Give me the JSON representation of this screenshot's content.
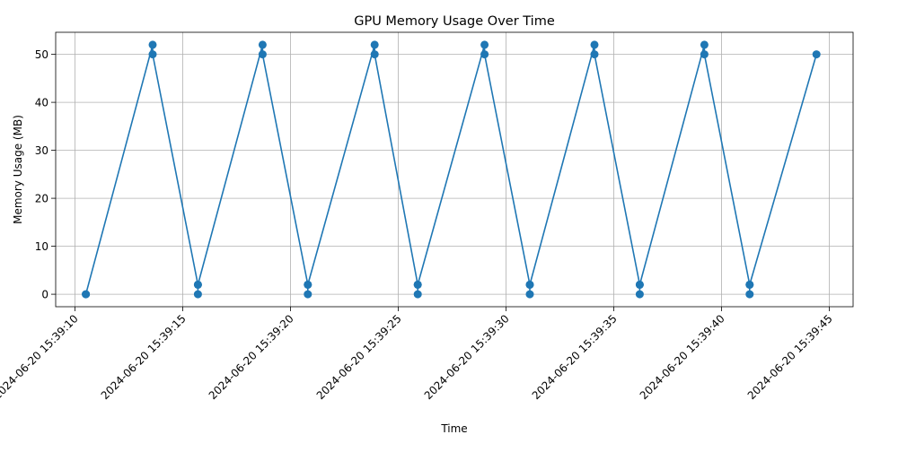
{
  "chart_data": {
    "type": "line",
    "title": "GPU Memory Usage Over Time",
    "xlabel": "Time",
    "ylabel": "Memory Usage (MB)",
    "x_ticks": [
      "2024-06-20 15:39:10",
      "2024-06-20 15:39:15",
      "2024-06-20 15:39:20",
      "2024-06-20 15:39:25",
      "2024-06-20 15:39:30",
      "2024-06-20 15:39:35",
      "2024-06-20 15:39:40",
      "2024-06-20 15:39:45"
    ],
    "y_ticks": [
      0,
      10,
      20,
      30,
      40,
      50
    ],
    "xlim": [
      "2024-06-20 15:39:09.1",
      "2024-06-20 15:39:46.1"
    ],
    "ylim": [
      -2.6,
      54.6
    ],
    "grid": true,
    "series": [
      {
        "color": "#1f77b4",
        "marker": "circle",
        "points": [
          {
            "x": "2024-06-20 15:39:10.5",
            "y": 0
          },
          {
            "x": "2024-06-20 15:39:10.5",
            "y": 0
          },
          {
            "x": "2024-06-20 15:39:13.6",
            "y": 52
          },
          {
            "x": "2024-06-20 15:39:13.6",
            "y": 50
          },
          {
            "x": "2024-06-20 15:39:15.7",
            "y": 2
          },
          {
            "x": "2024-06-20 15:39:15.7",
            "y": 0
          },
          {
            "x": "2024-06-20 15:39:15.7",
            "y": 2
          },
          {
            "x": "2024-06-20 15:39:18.7",
            "y": 52
          },
          {
            "x": "2024-06-20 15:39:18.7",
            "y": 50
          },
          {
            "x": "2024-06-20 15:39:20.8",
            "y": 2
          },
          {
            "x": "2024-06-20 15:39:20.8",
            "y": 0
          },
          {
            "x": "2024-06-20 15:39:20.8",
            "y": 2
          },
          {
            "x": "2024-06-20 15:39:23.9",
            "y": 52
          },
          {
            "x": "2024-06-20 15:39:23.9",
            "y": 50
          },
          {
            "x": "2024-06-20 15:39:25.9",
            "y": 2
          },
          {
            "x": "2024-06-20 15:39:25.9",
            "y": 0
          },
          {
            "x": "2024-06-20 15:39:25.9",
            "y": 2
          },
          {
            "x": "2024-06-20 15:39:29.0",
            "y": 52
          },
          {
            "x": "2024-06-20 15:39:29.0",
            "y": 50
          },
          {
            "x": "2024-06-20 15:39:31.1",
            "y": 2
          },
          {
            "x": "2024-06-20 15:39:31.1",
            "y": 0
          },
          {
            "x": "2024-06-20 15:39:31.1",
            "y": 2
          },
          {
            "x": "2024-06-20 15:39:34.1",
            "y": 52
          },
          {
            "x": "2024-06-20 15:39:34.1",
            "y": 50
          },
          {
            "x": "2024-06-20 15:39:36.2",
            "y": 2
          },
          {
            "x": "2024-06-20 15:39:36.2",
            "y": 0
          },
          {
            "x": "2024-06-20 15:39:36.2",
            "y": 2
          },
          {
            "x": "2024-06-20 15:39:39.2",
            "y": 52
          },
          {
            "x": "2024-06-20 15:39:39.2",
            "y": 50
          },
          {
            "x": "2024-06-20 15:39:41.3",
            "y": 2
          },
          {
            "x": "2024-06-20 15:39:41.3",
            "y": 0
          },
          {
            "x": "2024-06-20 15:39:41.3",
            "y": 2
          },
          {
            "x": "2024-06-20 15:39:44.4",
            "y": 50
          }
        ]
      }
    ]
  }
}
